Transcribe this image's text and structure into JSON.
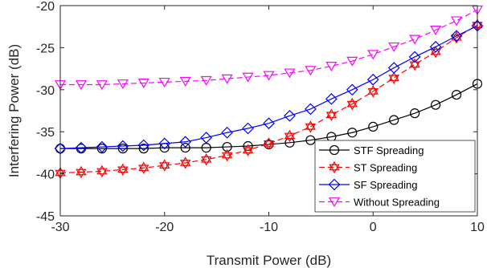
{
  "chart_data": {
    "type": "line",
    "title": "",
    "xlabel": "Transmit Power (dB)",
    "ylabel": "Interfering Power (dB)",
    "xlim": [
      -30,
      10
    ],
    "ylim": [
      -45,
      -20
    ],
    "xticks": [
      -30,
      -20,
      -10,
      0,
      10
    ],
    "yticks": [
      -45,
      -40,
      -35,
      -30,
      -25,
      -20
    ],
    "xtick_labels": [
      "-30",
      "-20",
      "-10",
      "0",
      "10"
    ],
    "ytick_labels": [
      "-45",
      "-40",
      "-35",
      "-30",
      "-25",
      "-20"
    ],
    "grid": false,
    "legend_position": "bottom-right",
    "x": [
      -30,
      -28,
      -26,
      -24,
      -22,
      -20,
      -18,
      -16,
      -14,
      -12,
      -10,
      -8,
      -6,
      -4,
      -2,
      0,
      2,
      4,
      6,
      8,
      10
    ],
    "series": [
      {
        "name": "STF Spreading",
        "color": "#000000",
        "linestyle": "solid",
        "marker": "circle",
        "values": [
          -37.0,
          -37.0,
          -37.0,
          -37.0,
          -37.0,
          -36.9,
          -36.9,
          -36.9,
          -36.8,
          -36.7,
          -36.5,
          -36.3,
          -36.0,
          -35.6,
          -35.1,
          -34.4,
          -33.6,
          -32.8,
          -31.8,
          -30.6,
          -29.3
        ]
      },
      {
        "name": "ST Spreading",
        "color": "#ff0000",
        "linestyle": "dashed",
        "marker": "hexagram",
        "values": [
          -39.9,
          -39.8,
          -39.7,
          -39.5,
          -39.3,
          -39.0,
          -38.7,
          -38.3,
          -37.8,
          -37.2,
          -36.4,
          -35.5,
          -34.4,
          -33.0,
          -31.7,
          -30.2,
          -28.6,
          -27.0,
          -25.5,
          -23.8,
          -22.3
        ]
      },
      {
        "name": "SF Spreading",
        "color": "#0000ff",
        "linestyle": "solid",
        "marker": "diamond",
        "values": [
          -37.0,
          -36.9,
          -36.8,
          -36.7,
          -36.6,
          -36.4,
          -36.2,
          -35.7,
          -35.1,
          -34.6,
          -34.0,
          -33.1,
          -32.3,
          -31.1,
          -30.0,
          -28.8,
          -27.4,
          -26.1,
          -24.9,
          -23.6,
          -22.4
        ]
      },
      {
        "name": "Without Spreading",
        "color": "#ff00ff",
        "linestyle": "dashed",
        "marker": "triangle-down",
        "values": [
          -29.4,
          -29.4,
          -29.4,
          -29.3,
          -29.2,
          -29.1,
          -29.0,
          -28.9,
          -28.7,
          -28.5,
          -28.3,
          -28.0,
          -27.7,
          -27.2,
          -26.6,
          -25.8,
          -24.9,
          -24.0,
          -22.9,
          -21.8,
          -20.5
        ]
      }
    ]
  }
}
